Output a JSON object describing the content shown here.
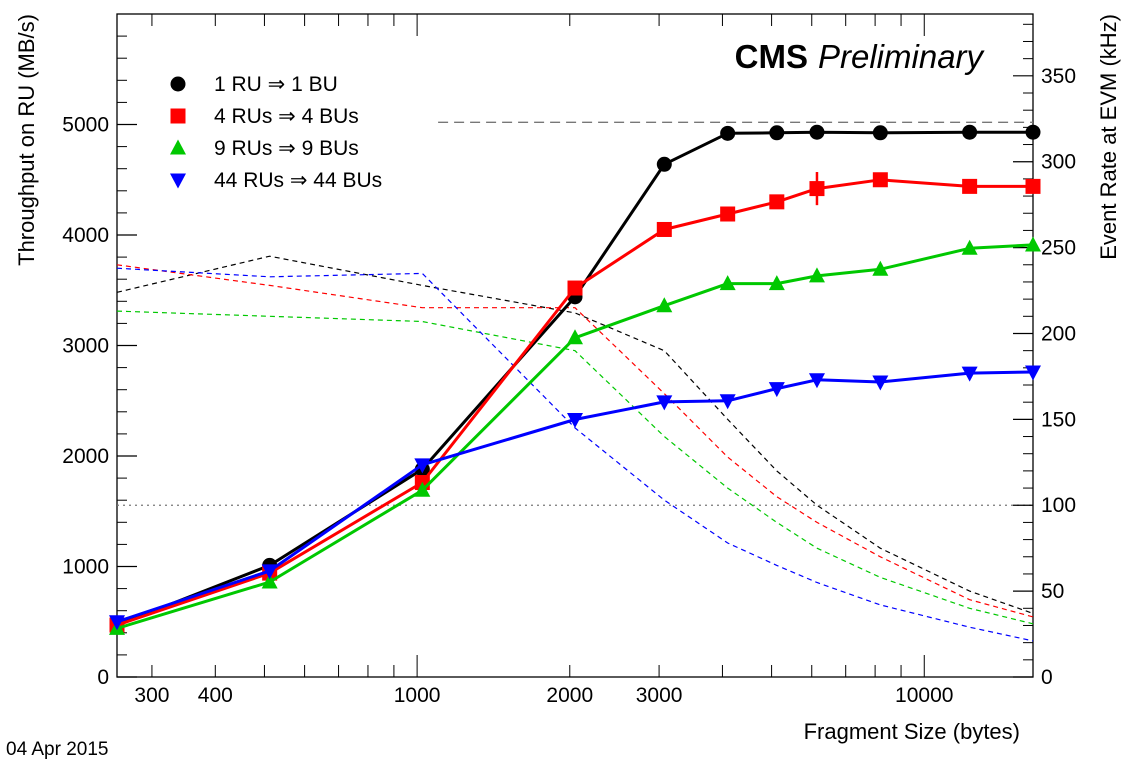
{
  "chart_data": {
    "type": "line",
    "title_bold": "CMS",
    "title_italic": "Preliminary",
    "date": "04 Apr 2015",
    "xlabel": "Fragment Size (bytes)",
    "ylabel": "Throughput on RU (MB/s)",
    "ylabel_right": "Event Rate at EVM (kHz)",
    "x_scale": "log",
    "xlim": [
      256,
      16384
    ],
    "ylim": [
      0,
      6000
    ],
    "ylim_right": [
      0,
      386
    ],
    "x_tick_labels": [
      "300",
      "400",
      "1000",
      "2000",
      "3000",
      "10000"
    ],
    "x_tick_values": [
      300,
      400,
      1000,
      2000,
      3000,
      10000
    ],
    "y_ticks": [
      0,
      1000,
      2000,
      3000,
      4000,
      5000
    ],
    "y_right_ticks": [
      0,
      50,
      100,
      150,
      200,
      250,
      300,
      350
    ],
    "reference_lines": {
      "throughput_limit_y": 5020,
      "throughput_limit_from_x": 1100,
      "rate_target_y_right": 100
    },
    "legend": {
      "placement": "top-left"
    },
    "series": [
      {
        "name": "1 RU ⇒ 1 BU",
        "color": "#000000",
        "marker": "circle",
        "x": [
          256,
          512,
          1024,
          2048,
          3072,
          4096,
          5120,
          6144,
          8192,
          12288,
          16384
        ],
        "y": [
          470,
          1010,
          1880,
          3440,
          4640,
          4920,
          4925,
          4930,
          4925,
          4930,
          4930
        ],
        "y_err": [
          0,
          0,
          0,
          0,
          0,
          0,
          0,
          0,
          0,
          0,
          0
        ],
        "rate_khz": [
          224,
          245,
          228,
          212,
          190,
          150,
          120,
          100,
          75,
          50,
          37
        ]
      },
      {
        "name": "4 RUs ⇒ 4 BUs",
        "color": "#ff0000",
        "marker": "square",
        "x": [
          256,
          512,
          1024,
          2048,
          3072,
          4096,
          5120,
          6144,
          8192,
          12288,
          16384
        ],
        "y": [
          470,
          940,
          1760,
          3520,
          4050,
          4190,
          4300,
          4420,
          4500,
          4440,
          4440
        ],
        "y_err": [
          0,
          0,
          0,
          0,
          0,
          0,
          0,
          150,
          0,
          0,
          0
        ],
        "rate_khz": [
          240,
          228,
          215,
          215,
          165,
          128,
          105,
          90,
          70,
          45,
          35
        ]
      },
      {
        "name": "9 RUs ⇒ 9 BUs",
        "color": "#00c800",
        "marker": "triangle-up",
        "x": [
          256,
          512,
          1024,
          2048,
          3072,
          4096,
          5120,
          6144,
          8192,
          12288,
          16384
        ],
        "y": [
          440,
          860,
          1690,
          3070,
          3360,
          3560,
          3560,
          3630,
          3690,
          3880,
          3910
        ],
        "y_err": [
          0,
          0,
          0,
          0,
          0,
          0,
          0,
          0,
          0,
          0,
          0
        ],
        "rate_khz": [
          213,
          210,
          207,
          190,
          140,
          110,
          90,
          75,
          58,
          40,
          31
        ]
      },
      {
        "name": "44 RUs ⇒ 44 BUs",
        "color": "#0000ff",
        "marker": "triangle-down",
        "x": [
          256,
          512,
          1024,
          2048,
          3072,
          4096,
          5120,
          6144,
          8192,
          12288,
          16384
        ],
        "y": [
          500,
          960,
          1920,
          2330,
          2490,
          2500,
          2610,
          2690,
          2670,
          2750,
          2760
        ],
        "y_err": [
          0,
          0,
          0,
          0,
          0,
          0,
          0,
          0,
          0,
          0,
          0
        ],
        "rate_khz": [
          238,
          233,
          235,
          145,
          103,
          78,
          65,
          55,
          42,
          29,
          21
        ]
      }
    ]
  }
}
